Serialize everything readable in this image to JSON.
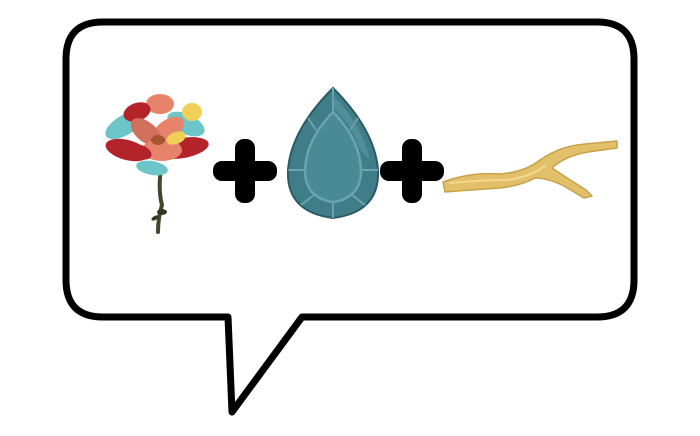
{
  "recipe": {
    "ingredients": [
      {
        "id": "flower",
        "icon": "multicolor-flower-icon"
      },
      {
        "id": "gem",
        "icon": "teal-gem-icon"
      },
      {
        "id": "branch",
        "icon": "forked-branch-icon"
      }
    ],
    "operator_icon": "plus-icon",
    "operator_count": 2
  },
  "colors": {
    "bubble_fill": "#ffffff",
    "bubble_stroke": "#000000",
    "plus": "#000000",
    "gem_dark": "#2b5b66",
    "gem_mid": "#3f7d89",
    "gem_light": "#6aa3ad",
    "branch": "#e2c06a",
    "petal_red": "#b5232a",
    "petal_salmon": "#e8836b",
    "petal_teal": "#6cc6c9",
    "petal_yellow": "#f0cf58",
    "stem": "#3d4a2c"
  }
}
